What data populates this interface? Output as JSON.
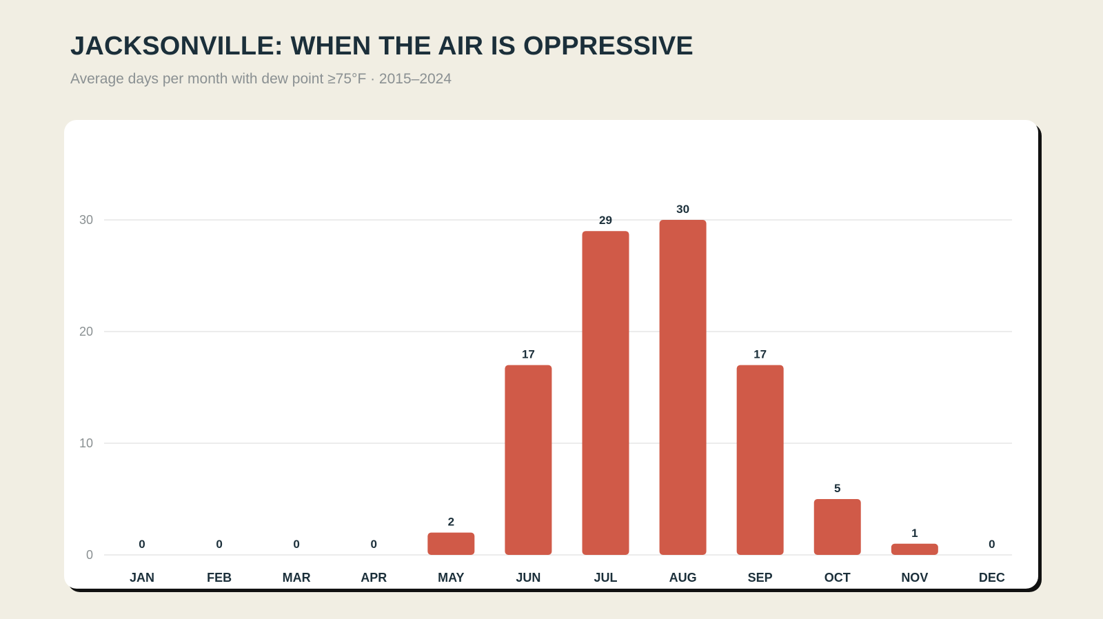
{
  "header": {
    "title": "JACKSONVILLE: WHEN THE AIR IS OPPRESSIVE",
    "subtitle": "Average days per month with dew point ≥75°F · 2015–2024"
  },
  "colors": {
    "background": "#f1eee3",
    "bar": "#d05a48",
    "text_dark": "#1b2f3a",
    "text_muted": "#8a9092"
  },
  "chart_data": {
    "type": "bar",
    "categories": [
      "JAN",
      "FEB",
      "MAR",
      "APR",
      "MAY",
      "JUN",
      "JUL",
      "AUG",
      "SEP",
      "OCT",
      "NOV",
      "DEC"
    ],
    "values": [
      0,
      0,
      0,
      0,
      2,
      17,
      29,
      30,
      17,
      5,
      1,
      0
    ],
    "yticks": [
      0,
      10,
      20,
      30
    ],
    "ylim": [
      0,
      30
    ],
    "grid": true,
    "legend": "none"
  }
}
